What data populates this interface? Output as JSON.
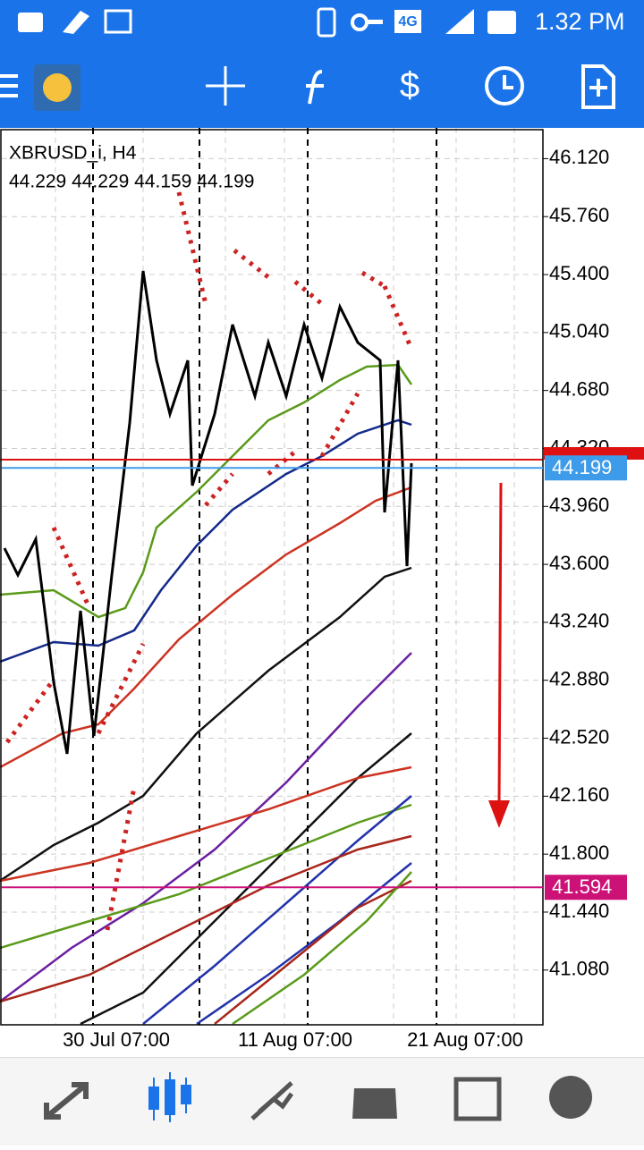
{
  "status_bar": {
    "network": "4G",
    "time": "1.32 PM"
  },
  "chart": {
    "symbol": "XBRUSD_i, H4",
    "ohlc": "44.229 44.229 44.159 44.199",
    "ylim": [
      40.74,
      46.3
    ],
    "yticks": [
      {
        "value": 46.12,
        "label": "46.120"
      },
      {
        "value": 45.76,
        "label": "45.760"
      },
      {
        "value": 45.4,
        "label": "45.400"
      },
      {
        "value": 45.04,
        "label": "45.040"
      },
      {
        "value": 44.68,
        "label": "44.680"
      },
      {
        "value": 44.32,
        "label": "44.320"
      },
      {
        "value": 43.96,
        "label": "43.960"
      },
      {
        "value": 43.6,
        "label": "43.600"
      },
      {
        "value": 43.24,
        "label": "43.240"
      },
      {
        "value": 42.88,
        "label": "42.880"
      },
      {
        "value": 42.52,
        "label": "42.520"
      },
      {
        "value": 42.16,
        "label": "42.160"
      },
      {
        "value": 41.8,
        "label": "41.800"
      },
      {
        "value": 41.44,
        "label": "41.440"
      },
      {
        "value": 41.08,
        "label": "41.080"
      }
    ],
    "time_labels": [
      "30 Jul 07:00",
      "11 Aug 07:00",
      "21 Aug 07:00"
    ],
    "price_lines": [
      {
        "value": 44.199,
        "label": "44.199",
        "color": "#3d9be9"
      },
      {
        "value": 41.594,
        "label": "41.594",
        "color": "#cc1177"
      }
    ]
  }
}
